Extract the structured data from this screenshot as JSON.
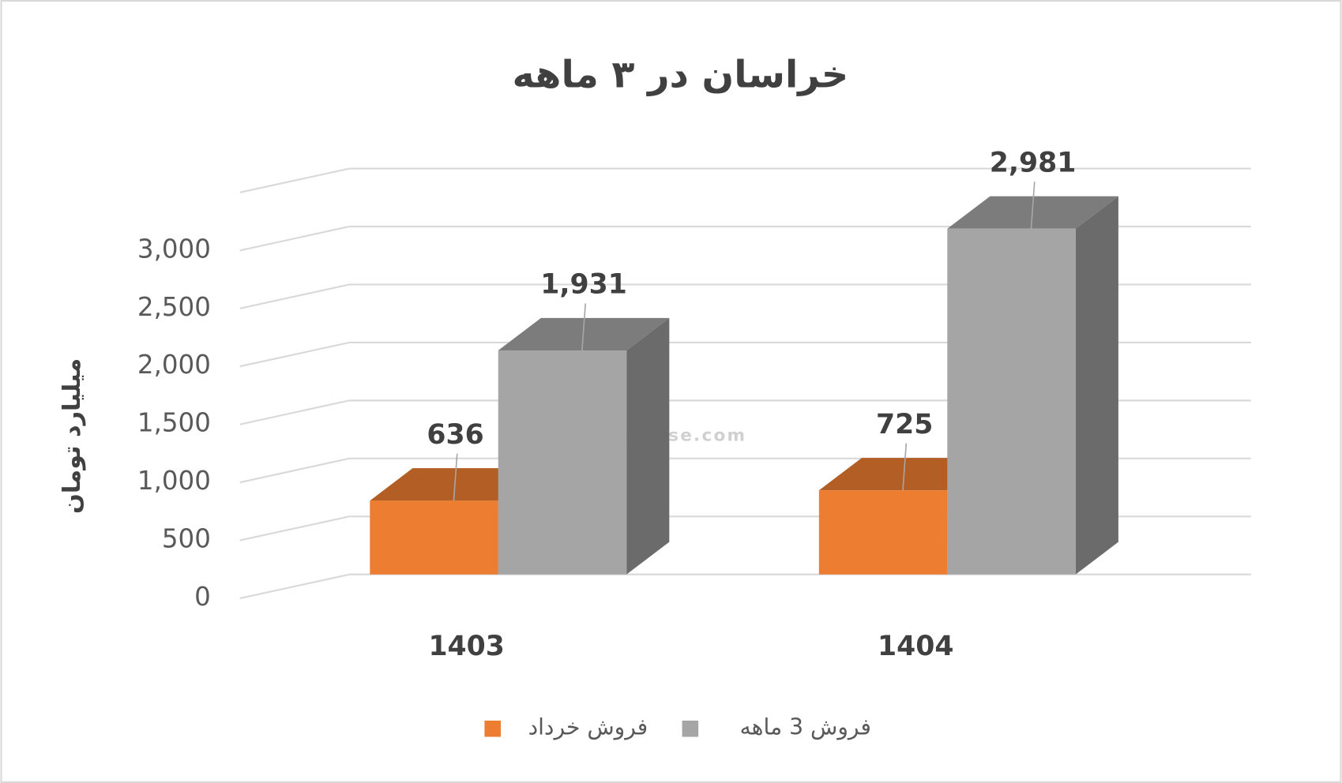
{
  "chart_data": {
    "type": "bar3d",
    "title": "خراسان در ۳ ماهه",
    "y_label": "میلیارد تومان",
    "watermark": "nabzebourse.com",
    "categories": [
      "1403",
      "1404"
    ],
    "series": [
      {
        "name": "فروش خرداد",
        "color": "#ed7d31",
        "values": [
          636,
          725
        ]
      },
      {
        "name": "فروش 3  ماهه",
        "color": "#a5a5a5",
        "values": [
          1931,
          2981
        ],
        "value_labels": [
          "1,931",
          "2,981"
        ]
      }
    ],
    "ylim": [
      0,
      3500
    ],
    "yticks": [
      0,
      500,
      {
        "value": 1000,
        "label": "1,000"
      },
      {
        "value": 1500,
        "label": "1,500"
      },
      {
        "value": 2000,
        "label": "2,000"
      },
      {
        "value": 2500,
        "label": "2,500"
      },
      {
        "value": 3000,
        "label": "3,000"
      }
    ],
    "grid": true
  }
}
